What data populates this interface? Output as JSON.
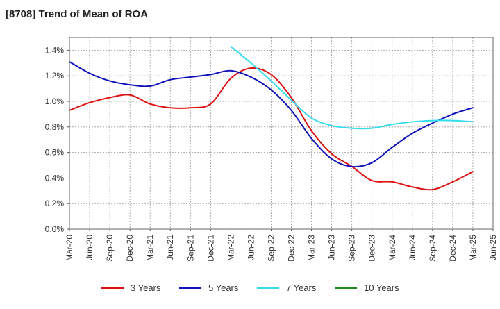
{
  "chart_data": {
    "type": "line",
    "title": "[8708]  Trend of Mean of ROA",
    "xlabel": "",
    "ylabel": "",
    "ylim": [
      0,
      1.5
    ],
    "y_ticks": [
      0,
      0.2,
      0.4,
      0.6,
      0.8,
      1.0,
      1.2,
      1.4
    ],
    "y_tick_labels": [
      "0.0%",
      "0.2%",
      "0.4%",
      "0.6%",
      "0.8%",
      "1.0%",
      "1.2%",
      "1.4%"
    ],
    "categories": [
      "Mar-20",
      "Jun-20",
      "Sep-20",
      "Dec-20",
      "Mar-21",
      "Jun-21",
      "Sep-21",
      "Dec-21",
      "Mar-22",
      "Jun-22",
      "Sep-22",
      "Dec-22",
      "Mar-23",
      "Jun-23",
      "Sep-23",
      "Dec-23",
      "Mar-24",
      "Jun-24",
      "Sep-24",
      "Dec-24",
      "Mar-25",
      "Jun-25"
    ],
    "grid": true,
    "legend_position": "bottom",
    "series": [
      {
        "name": "3 Years",
        "color": "#dd1111",
        "values": [
          0.93,
          0.99,
          1.03,
          1.05,
          0.98,
          0.95,
          0.95,
          0.98,
          1.18,
          1.26,
          1.21,
          1.03,
          0.77,
          0.59,
          0.49,
          0.38,
          0.37,
          0.33,
          0.31,
          0.37,
          0.45,
          null
        ]
      },
      {
        "name": "5 Years",
        "color": "#1111bb",
        "values": [
          1.31,
          1.22,
          1.16,
          1.13,
          1.12,
          1.17,
          1.19,
          1.21,
          1.24,
          1.19,
          1.09,
          0.93,
          0.71,
          0.55,
          0.49,
          0.52,
          0.64,
          0.75,
          0.83,
          0.9,
          0.95,
          null
        ]
      },
      {
        "name": "7 Years",
        "color": "#33ddee",
        "values": [
          null,
          null,
          null,
          null,
          null,
          null,
          null,
          null,
          1.43,
          1.3,
          1.16,
          1.01,
          0.87,
          0.81,
          0.79,
          0.79,
          0.82,
          0.84,
          0.85,
          0.85,
          0.84,
          null
        ]
      },
      {
        "name": "10 Years",
        "color": "#228822",
        "values": [
          null,
          null,
          null,
          null,
          null,
          null,
          null,
          null,
          null,
          null,
          null,
          null,
          null,
          null,
          null,
          null,
          null,
          null,
          null,
          null,
          null,
          null
        ]
      }
    ]
  }
}
